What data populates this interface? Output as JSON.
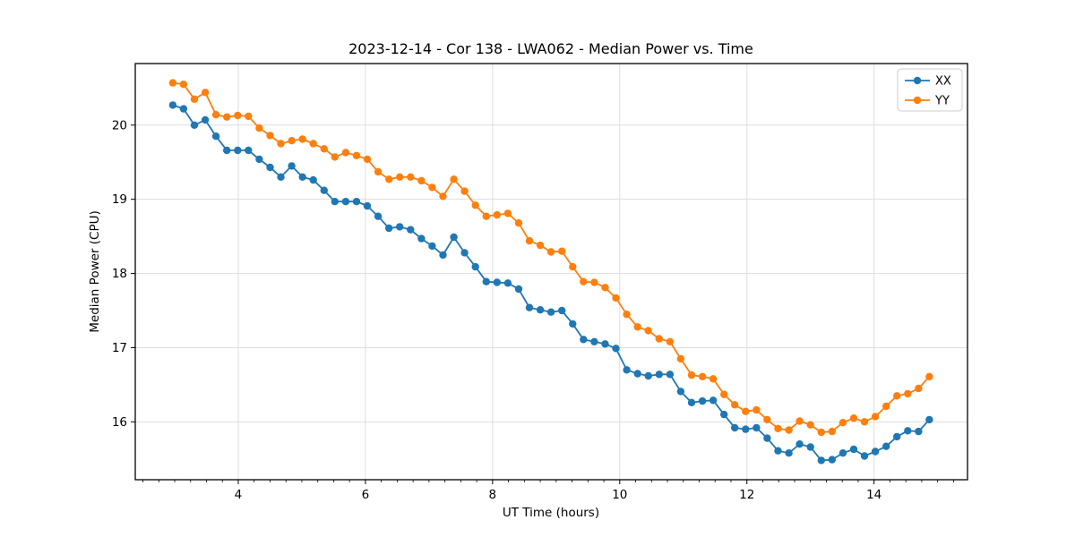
{
  "figure": {
    "title": "2023-12-14 - Cor 138 - LWA062 - Median Power vs. Time"
  },
  "chart_data": {
    "type": "line",
    "title": "2023-12-14 - Cor 138 - LWA062 - Median Power vs. Time",
    "xlabel": "UT Time (hours)",
    "ylabel": "Median Power (CPU)",
    "xlim": [
      2.38,
      15.47
    ],
    "ylim": [
      15.22,
      20.83
    ],
    "xticks": [
      4,
      6,
      8,
      10,
      12,
      14
    ],
    "yticks": [
      16,
      17,
      18,
      19,
      20
    ],
    "x_minor_step": 0.25,
    "grid": true,
    "grid_color": "#dddddd",
    "legend_position": "upper right",
    "marker": "circle",
    "x": [
      2.97,
      3.14,
      3.31,
      3.48,
      3.65,
      3.82,
      3.99,
      4.16,
      4.33,
      4.5,
      4.67,
      4.84,
      5.01,
      5.18,
      5.35,
      5.52,
      5.69,
      5.86,
      6.03,
      6.2,
      6.37,
      6.54,
      6.71,
      6.88,
      7.05,
      7.22,
      7.39,
      7.56,
      7.73,
      7.9,
      8.07,
      8.24,
      8.41,
      8.58,
      8.75,
      8.92,
      9.09,
      9.26,
      9.43,
      9.6,
      9.77,
      9.94,
      10.11,
      10.28,
      10.45,
      10.62,
      10.79,
      10.96,
      11.13,
      11.3,
      11.47,
      11.64,
      11.81,
      11.98,
      12.15,
      12.32,
      12.49,
      12.66,
      12.83,
      13.0,
      13.17,
      13.34,
      13.51,
      13.68,
      13.85,
      14.02,
      14.19,
      14.36,
      14.53,
      14.7,
      14.87
    ],
    "series": [
      {
        "name": "XX",
        "color": "#1f77b4",
        "values": [
          20.27,
          20.22,
          20.0,
          20.07,
          19.85,
          19.66,
          19.66,
          19.66,
          19.54,
          19.43,
          19.3,
          19.45,
          19.3,
          19.26,
          19.12,
          18.97,
          18.97,
          18.97,
          18.91,
          18.77,
          18.61,
          18.63,
          18.59,
          18.47,
          18.37,
          18.25,
          18.49,
          18.28,
          18.09,
          17.89,
          17.88,
          17.87,
          17.79,
          17.54,
          17.51,
          17.48,
          17.5,
          17.32,
          17.11,
          17.08,
          17.05,
          16.99,
          16.7,
          16.65,
          16.62,
          16.64,
          16.64,
          16.41,
          16.26,
          16.28,
          16.29,
          16.1,
          15.92,
          15.9,
          15.92,
          15.78,
          15.61,
          15.58,
          15.7,
          15.66,
          15.48,
          15.49,
          15.58,
          15.63,
          15.54,
          15.6,
          15.67,
          15.8,
          15.88,
          15.87,
          16.03
        ]
      },
      {
        "name": "YY",
        "color": "#ff7f0e",
        "values": [
          20.57,
          20.55,
          20.35,
          20.44,
          20.14,
          20.11,
          20.13,
          20.12,
          19.96,
          19.86,
          19.75,
          19.79,
          19.81,
          19.75,
          19.68,
          19.57,
          19.63,
          19.59,
          19.54,
          19.37,
          19.27,
          19.3,
          19.3,
          19.25,
          19.16,
          19.04,
          19.27,
          19.11,
          18.92,
          18.77,
          18.79,
          18.81,
          18.68,
          18.44,
          18.38,
          18.29,
          18.3,
          18.09,
          17.89,
          17.88,
          17.81,
          17.67,
          17.45,
          17.28,
          17.23,
          17.12,
          17.08,
          16.85,
          16.63,
          16.61,
          16.58,
          16.37,
          16.23,
          16.14,
          16.16,
          16.03,
          15.91,
          15.89,
          16.01,
          15.96,
          15.86,
          15.87,
          15.99,
          16.05,
          16.0,
          16.07,
          16.21,
          16.35,
          16.38,
          16.45,
          16.61
        ]
      }
    ]
  }
}
